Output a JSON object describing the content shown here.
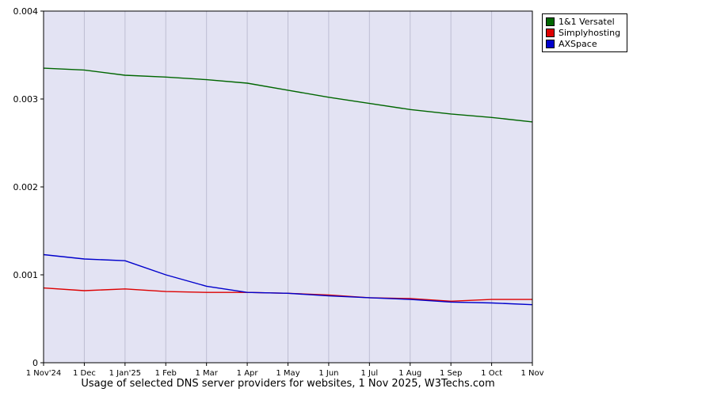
{
  "chart_data": {
    "type": "line",
    "title": "Usage of selected DNS server providers for websites, 1 Nov 2025, W3Techs.com",
    "x_labels": [
      "1 Nov'24",
      "1 Dec",
      "1 Jan'25",
      "1 Feb",
      "1 Mar",
      "1 Apr",
      "1 May",
      "1 Jun",
      "1 Jul",
      "1 Aug",
      "1 Sep",
      "1 Oct",
      "1 Nov"
    ],
    "y_ticks": [
      0,
      0.001,
      0.002,
      0.003,
      0.004
    ],
    "y_tick_labels": [
      "0",
      "0.001",
      "0.002",
      "0.003",
      "0.004"
    ],
    "ylim": [
      0,
      0.004
    ],
    "grid": "vertical",
    "legend_position": "top-right",
    "series": [
      {
        "name": "1&1 Versatel",
        "color": "#006600",
        "values": [
          0.00335,
          0.00333,
          0.00327,
          0.00325,
          0.00322,
          0.00318,
          0.0031,
          0.00302,
          0.00295,
          0.00288,
          0.00283,
          0.00279,
          0.00274
        ]
      },
      {
        "name": "Simplyhosting",
        "color": "#dd0000",
        "values": [
          0.00085,
          0.00082,
          0.00084,
          0.00081,
          0.0008,
          0.0008,
          0.00079,
          0.00077,
          0.00074,
          0.00073,
          0.0007,
          0.00072,
          0.00072
        ]
      },
      {
        "name": "AXSpace",
        "color": "#0000cc",
        "values": [
          0.00123,
          0.00118,
          0.00116,
          0.001,
          0.00087,
          0.0008,
          0.00079,
          0.00076,
          0.00074,
          0.00072,
          0.00069,
          0.00068,
          0.00066
        ]
      }
    ],
    "colors": {
      "plot_bg": "#e3e3f3",
      "grid": "#bdbdd2",
      "axis": "#000000"
    }
  }
}
